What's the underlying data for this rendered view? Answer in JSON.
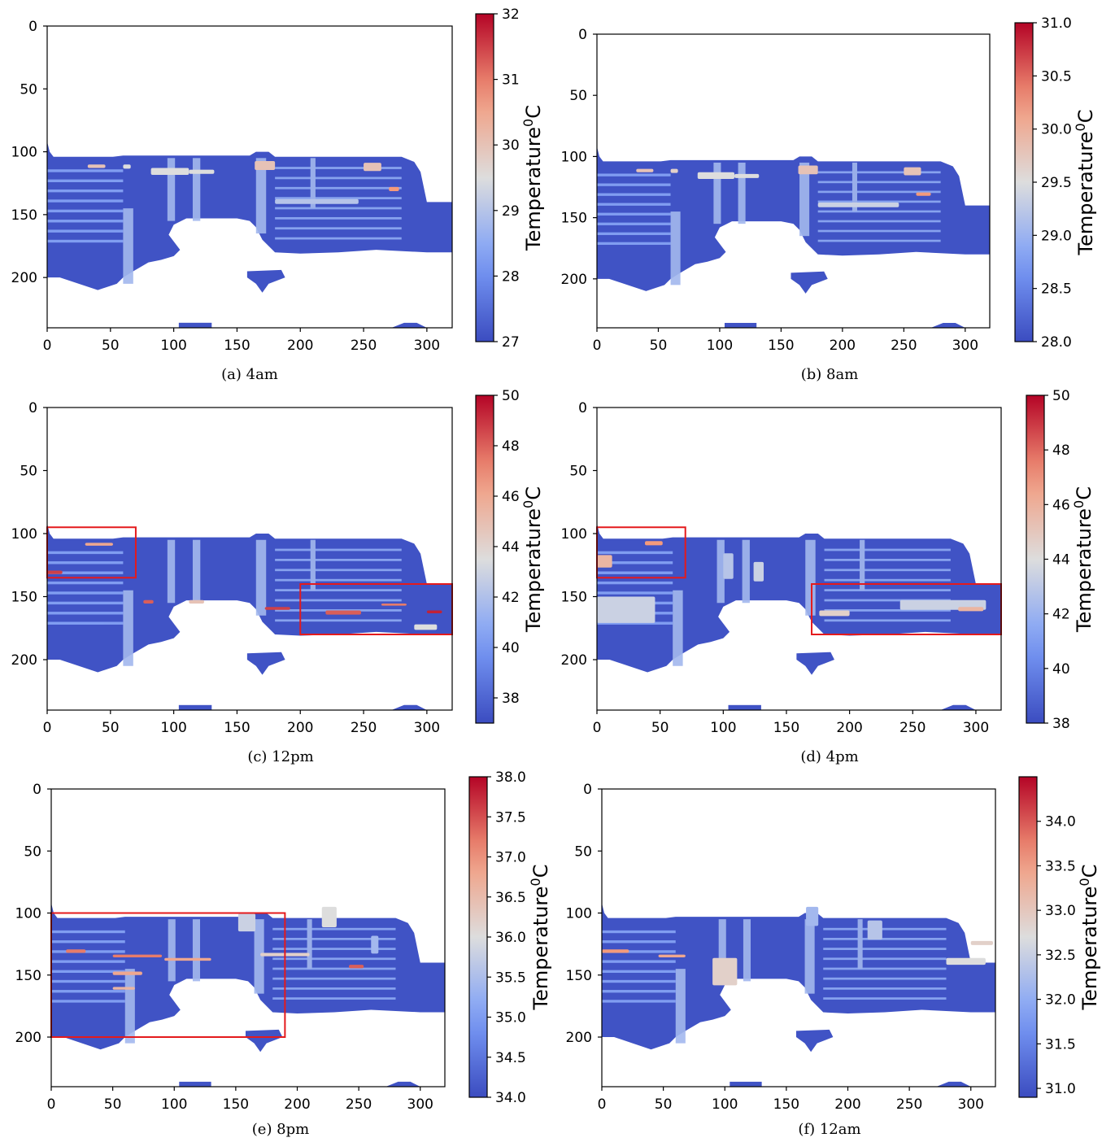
{
  "colors": {
    "cmap": "coolwarm",
    "cmap_low": "#3b4cc0",
    "cmap_mid": "#dddddd",
    "cmap_high": "#b40426",
    "box": "#e41a1c",
    "background": "#ffffff"
  },
  "chart_data": [
    {
      "type": "heatmap",
      "caption": "(a) 4am",
      "xlim": [
        0,
        320
      ],
      "ylim": [
        240,
        0
      ],
      "xticks": [
        0,
        50,
        100,
        150,
        200,
        250,
        300
      ],
      "yticks": [
        0,
        50,
        100,
        150,
        200
      ],
      "colorbar": {
        "label": "Temperature",
        "label_superscript": "0",
        "label_unit": "C",
        "min": 27,
        "max": 32,
        "ticks": [
          27,
          28,
          29,
          30,
          31,
          32
        ]
      },
      "boxes": []
    },
    {
      "type": "heatmap",
      "caption": "(b) 8am",
      "xlim": [
        0,
        320
      ],
      "ylim": [
        240,
        0
      ],
      "xticks": [
        0,
        50,
        100,
        150,
        200,
        250,
        300
      ],
      "yticks": [
        0,
        50,
        100,
        150,
        200
      ],
      "colorbar": {
        "label": "Temperature",
        "label_superscript": "0",
        "label_unit": "C",
        "min": 28.0,
        "max": 31.0,
        "ticks": [
          "28.0",
          "28.5",
          "29.0",
          "29.5",
          "30.0",
          "30.5",
          "31.0"
        ]
      },
      "boxes": []
    },
    {
      "type": "heatmap",
      "caption": "(c) 12pm",
      "xlim": [
        0,
        320
      ],
      "ylim": [
        240,
        0
      ],
      "xticks": [
        0,
        50,
        100,
        150,
        200,
        250,
        300
      ],
      "yticks": [
        0,
        50,
        100,
        150,
        200
      ],
      "colorbar": {
        "label": "Temperature",
        "label_superscript": "0",
        "label_unit": "C",
        "min": 37,
        "max": 50,
        "ticks": [
          38,
          40,
          42,
          44,
          46,
          48,
          50
        ]
      },
      "boxes": [
        {
          "x0": 0,
          "y0": 95,
          "x1": 70,
          "y1": 135
        },
        {
          "x0": 200,
          "y0": 140,
          "x1": 320,
          "y1": 180
        }
      ]
    },
    {
      "type": "heatmap",
      "caption": "(d) 4pm",
      "xlim": [
        0,
        320
      ],
      "ylim": [
        240,
        0
      ],
      "xticks": [
        0,
        50,
        100,
        150,
        200,
        250,
        300
      ],
      "yticks": [
        0,
        50,
        100,
        150,
        200
      ],
      "colorbar": {
        "label": "Temperature",
        "label_superscript": "0",
        "label_unit": "C",
        "min": 38,
        "max": 50,
        "ticks": [
          38,
          40,
          42,
          44,
          46,
          48,
          50
        ]
      },
      "boxes": [
        {
          "x0": 0,
          "y0": 95,
          "x1": 70,
          "y1": 135
        },
        {
          "x0": 170,
          "y0": 140,
          "x1": 320,
          "y1": 180
        }
      ]
    },
    {
      "type": "heatmap",
      "caption": "(e) 8pm",
      "xlim": [
        0,
        320
      ],
      "ylim": [
        240,
        0
      ],
      "xticks": [
        0,
        50,
        100,
        150,
        200,
        250,
        300
      ],
      "yticks": [
        0,
        50,
        100,
        150,
        200
      ],
      "colorbar": {
        "label": "Temperature",
        "label_superscript": "0",
        "label_unit": "C",
        "min": 34.0,
        "max": 38.0,
        "ticks": [
          "34.0",
          "34.5",
          "35.0",
          "35.5",
          "36.0",
          "36.5",
          "37.0",
          "37.5",
          "38.0"
        ]
      },
      "boxes": [
        {
          "x0": 0,
          "y0": 100,
          "x1": 190,
          "y1": 200
        }
      ]
    },
    {
      "type": "heatmap",
      "caption": "(f) 12am",
      "xlim": [
        0,
        320
      ],
      "ylim": [
        240,
        0
      ],
      "xticks": [
        0,
        50,
        100,
        150,
        200,
        250,
        300
      ],
      "yticks": [
        0,
        50,
        100,
        150,
        200
      ],
      "colorbar": {
        "label": "Temperature",
        "label_superscript": "0",
        "label_unit": "C",
        "min": 30.9,
        "max": 34.5,
        "ticks": [
          "31.0",
          "31.5",
          "32.0",
          "32.5",
          "33.0",
          "33.5",
          "34.0"
        ]
      },
      "boxes": []
    }
  ]
}
